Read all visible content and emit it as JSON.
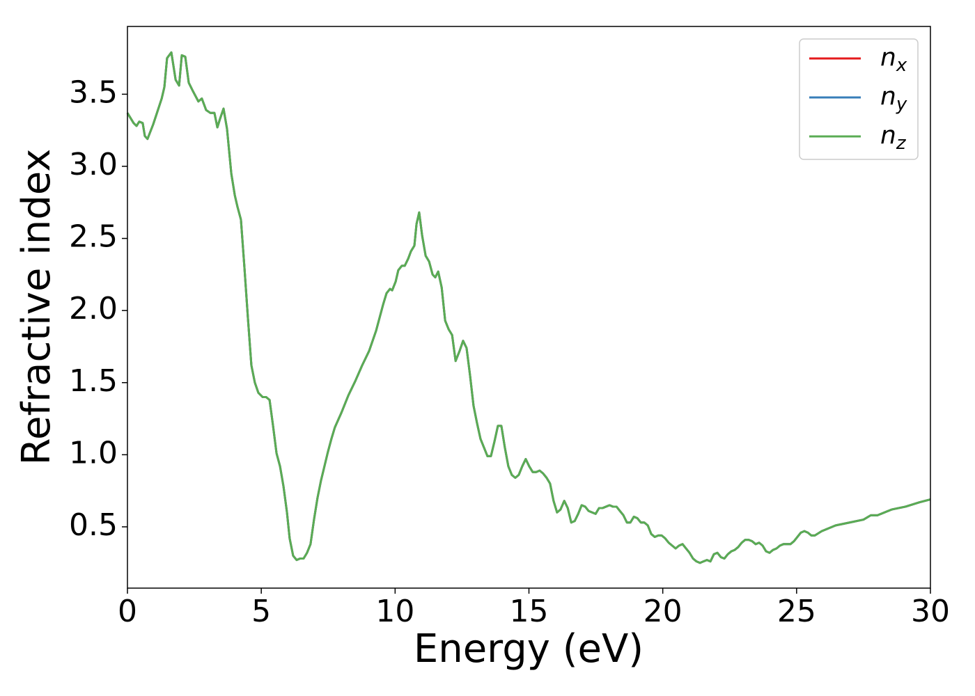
{
  "chart_data": {
    "type": "line",
    "xlabel": "Energy (eV)",
    "ylabel": "Refractive index",
    "xlim": [
      0,
      30
    ],
    "xticks": [
      0,
      5,
      10,
      15,
      20,
      25,
      30
    ],
    "ylim": [
      0.075,
      3.97
    ],
    "yticks": [
      0.5,
      {
        "value": 1,
        "label": "1.0"
      },
      1.5,
      {
        "value": 2,
        "label": "2.0"
      },
      2.5,
      {
        "value": 3,
        "label": "3.0"
      },
      3.5
    ],
    "legend": "upper right",
    "x": [
      0,
      0.23,
      0.34,
      0.44,
      0.57,
      0.65,
      0.75,
      0.96,
      1.28,
      1.38,
      1.48,
      1.64,
      1.8,
      1.93,
      2.03,
      2.16,
      2.29,
      2.45,
      2.65,
      2.78,
      2.94,
      3.1,
      3.25,
      3.36,
      3.46,
      3.59,
      3.72,
      3.88,
      4.01,
      4.11,
      4.24,
      4.37,
      4.5,
      4.63,
      4.76,
      4.89,
      5.05,
      5.18,
      5.31,
      5.44,
      5.57,
      5.7,
      5.83,
      5.96,
      6.06,
      6.19,
      6.32,
      6.45,
      6.58,
      6.71,
      6.84,
      6.97,
      7.1,
      7.23,
      7.36,
      7.49,
      7.62,
      7.75,
      7.99,
      8.25,
      8.51,
      8.77,
      9.03,
      9.29,
      9.42,
      9.55,
      9.68,
      9.81,
      9.89,
      10.02,
      10.12,
      10.25,
      10.36,
      10.49,
      10.59,
      10.72,
      10.8,
      10.9,
      11.01,
      11.14,
      11.27,
      11.4,
      11.5,
      11.61,
      11.74,
      11.87,
      12.0,
      12.13,
      12.26,
      12.41,
      12.54,
      12.67,
      12.8,
      12.93,
      13.06,
      13.19,
      13.32,
      13.45,
      13.58,
      13.71,
      13.84,
      13.97,
      14.1,
      14.23,
      14.36,
      14.49,
      14.62,
      14.75,
      14.88,
      15.01,
      15.14,
      15.27,
      15.4,
      15.53,
      15.66,
      15.79,
      15.92,
      16.05,
      16.18,
      16.32,
      16.45,
      16.58,
      16.71,
      16.84,
      16.97,
      17.1,
      17.23,
      17.36,
      17.49,
      17.62,
      17.75,
      17.88,
      18.01,
      18.14,
      18.27,
      18.4,
      18.53,
      18.66,
      18.79,
      18.92,
      19.05,
      19.18,
      19.31,
      19.44,
      19.57,
      19.7,
      19.83,
      19.96,
      20.09,
      20.22,
      20.35,
      20.48,
      20.61,
      20.74,
      20.87,
      21.0,
      21.13,
      21.26,
      21.39,
      21.52,
      21.65,
      21.78,
      21.91,
      22.04,
      22.17,
      22.3,
      22.43,
      22.56,
      22.69,
      22.82,
      22.95,
      23.08,
      23.21,
      23.34,
      23.47,
      23.6,
      23.73,
      23.86,
      23.99,
      24.12,
      24.25,
      24.38,
      24.51,
      24.64,
      24.77,
      24.9,
      25.03,
      25.16,
      25.29,
      25.42,
      25.55,
      25.68,
      25.94,
      26.2,
      26.46,
      26.98,
      27.5,
      27.77,
      28.02,
      28.55,
      29.07,
      29.59,
      30
    ],
    "series": [
      {
        "name": "nx",
        "color": "#e41a1c",
        "values": [
          3.37,
          3.3,
          3.28,
          3.31,
          3.3,
          3.21,
          3.19,
          3.29,
          3.47,
          3.55,
          3.75,
          3.79,
          3.6,
          3.56,
          3.77,
          3.76,
          3.58,
          3.52,
          3.45,
          3.47,
          3.39,
          3.37,
          3.37,
          3.27,
          3.33,
          3.4,
          3.26,
          2.95,
          2.8,
          2.72,
          2.63,
          2.3,
          1.95,
          1.62,
          1.5,
          1.43,
          1.4,
          1.4,
          1.38,
          1.2,
          1.01,
          0.92,
          0.78,
          0.6,
          0.42,
          0.3,
          0.27,
          0.28,
          0.28,
          0.32,
          0.38,
          0.55,
          0.7,
          0.82,
          0.92,
          1.02,
          1.11,
          1.19,
          1.29,
          1.41,
          1.51,
          1.62,
          1.72,
          1.86,
          1.95,
          2.04,
          2.12,
          2.15,
          2.14,
          2.2,
          2.28,
          2.31,
          2.31,
          2.36,
          2.41,
          2.45,
          2.6,
          2.68,
          2.52,
          2.38,
          2.34,
          2.25,
          2.23,
          2.27,
          2.16,
          1.93,
          1.87,
          1.83,
          1.65,
          1.72,
          1.79,
          1.74,
          1.55,
          1.34,
          1.22,
          1.11,
          1.05,
          0.99,
          0.99,
          1.09,
          1.2,
          1.2,
          1.05,
          0.92,
          0.86,
          0.84,
          0.86,
          0.92,
          0.97,
          0.92,
          0.88,
          0.88,
          0.89,
          0.87,
          0.84,
          0.8,
          0.68,
          0.6,
          0.62,
          0.68,
          0.63,
          0.53,
          0.54,
          0.59,
          0.65,
          0.64,
          0.61,
          0.6,
          0.59,
          0.63,
          0.63,
          0.64,
          0.65,
          0.64,
          0.64,
          0.61,
          0.58,
          0.53,
          0.53,
          0.57,
          0.56,
          0.53,
          0.53,
          0.51,
          0.45,
          0.43,
          0.44,
          0.44,
          0.42,
          0.39,
          0.37,
          0.35,
          0.37,
          0.38,
          0.35,
          0.32,
          0.28,
          0.26,
          0.25,
          0.26,
          0.27,
          0.26,
          0.31,
          0.32,
          0.29,
          0.28,
          0.31,
          0.33,
          0.34,
          0.36,
          0.39,
          0.41,
          0.41,
          0.4,
          0.38,
          0.39,
          0.37,
          0.33,
          0.32,
          0.34,
          0.35,
          0.37,
          0.38,
          0.38,
          0.38,
          0.4,
          0.43,
          0.46,
          0.47,
          0.46,
          0.44,
          0.44,
          0.47,
          0.49,
          0.51,
          0.53,
          0.55,
          0.58,
          0.58,
          0.62,
          0.64,
          0.67,
          0.69
        ]
      },
      {
        "name": "ny",
        "color": "#377eb8",
        "values": [
          3.37,
          3.3,
          3.28,
          3.31,
          3.3,
          3.21,
          3.19,
          3.29,
          3.47,
          3.55,
          3.75,
          3.79,
          3.6,
          3.56,
          3.77,
          3.76,
          3.58,
          3.52,
          3.45,
          3.47,
          3.39,
          3.37,
          3.37,
          3.27,
          3.33,
          3.4,
          3.26,
          2.95,
          2.8,
          2.72,
          2.63,
          2.3,
          1.95,
          1.62,
          1.5,
          1.43,
          1.4,
          1.4,
          1.38,
          1.2,
          1.01,
          0.92,
          0.78,
          0.6,
          0.42,
          0.3,
          0.27,
          0.28,
          0.28,
          0.32,
          0.38,
          0.55,
          0.7,
          0.82,
          0.92,
          1.02,
          1.11,
          1.19,
          1.29,
          1.41,
          1.51,
          1.62,
          1.72,
          1.86,
          1.95,
          2.04,
          2.12,
          2.15,
          2.14,
          2.2,
          2.28,
          2.31,
          2.31,
          2.36,
          2.41,
          2.45,
          2.6,
          2.68,
          2.52,
          2.38,
          2.34,
          2.25,
          2.23,
          2.27,
          2.16,
          1.93,
          1.87,
          1.83,
          1.65,
          1.72,
          1.79,
          1.74,
          1.55,
          1.34,
          1.22,
          1.11,
          1.05,
          0.99,
          0.99,
          1.09,
          1.2,
          1.2,
          1.05,
          0.92,
          0.86,
          0.84,
          0.86,
          0.92,
          0.97,
          0.92,
          0.88,
          0.88,
          0.89,
          0.87,
          0.84,
          0.8,
          0.68,
          0.6,
          0.62,
          0.68,
          0.63,
          0.53,
          0.54,
          0.59,
          0.65,
          0.64,
          0.61,
          0.6,
          0.59,
          0.63,
          0.63,
          0.64,
          0.65,
          0.64,
          0.64,
          0.61,
          0.58,
          0.53,
          0.53,
          0.57,
          0.56,
          0.53,
          0.53,
          0.51,
          0.45,
          0.43,
          0.44,
          0.44,
          0.42,
          0.39,
          0.37,
          0.35,
          0.37,
          0.38,
          0.35,
          0.32,
          0.28,
          0.26,
          0.25,
          0.26,
          0.27,
          0.26,
          0.31,
          0.32,
          0.29,
          0.28,
          0.31,
          0.33,
          0.34,
          0.36,
          0.39,
          0.41,
          0.41,
          0.4,
          0.38,
          0.39,
          0.37,
          0.33,
          0.32,
          0.34,
          0.35,
          0.37,
          0.38,
          0.38,
          0.38,
          0.4,
          0.43,
          0.46,
          0.47,
          0.46,
          0.44,
          0.44,
          0.47,
          0.49,
          0.51,
          0.53,
          0.55,
          0.58,
          0.58,
          0.62,
          0.64,
          0.67,
          0.69
        ]
      },
      {
        "name": "nz",
        "color": "#5aac54",
        "values": [
          3.37,
          3.3,
          3.28,
          3.31,
          3.3,
          3.21,
          3.19,
          3.29,
          3.47,
          3.55,
          3.75,
          3.79,
          3.6,
          3.56,
          3.77,
          3.76,
          3.58,
          3.52,
          3.45,
          3.47,
          3.39,
          3.37,
          3.37,
          3.27,
          3.33,
          3.4,
          3.26,
          2.95,
          2.8,
          2.72,
          2.63,
          2.3,
          1.95,
          1.62,
          1.5,
          1.43,
          1.4,
          1.4,
          1.38,
          1.2,
          1.01,
          0.92,
          0.78,
          0.6,
          0.42,
          0.3,
          0.27,
          0.28,
          0.28,
          0.32,
          0.38,
          0.55,
          0.7,
          0.82,
          0.92,
          1.02,
          1.11,
          1.19,
          1.29,
          1.41,
          1.51,
          1.62,
          1.72,
          1.86,
          1.95,
          2.04,
          2.12,
          2.15,
          2.14,
          2.2,
          2.28,
          2.31,
          2.31,
          2.36,
          2.41,
          2.45,
          2.6,
          2.68,
          2.52,
          2.38,
          2.34,
          2.25,
          2.23,
          2.27,
          2.16,
          1.93,
          1.87,
          1.83,
          1.65,
          1.72,
          1.79,
          1.74,
          1.55,
          1.34,
          1.22,
          1.11,
          1.05,
          0.99,
          0.99,
          1.09,
          1.2,
          1.2,
          1.05,
          0.92,
          0.86,
          0.84,
          0.86,
          0.92,
          0.97,
          0.92,
          0.88,
          0.88,
          0.89,
          0.87,
          0.84,
          0.8,
          0.68,
          0.6,
          0.62,
          0.68,
          0.63,
          0.53,
          0.54,
          0.59,
          0.65,
          0.64,
          0.61,
          0.6,
          0.59,
          0.63,
          0.63,
          0.64,
          0.65,
          0.64,
          0.64,
          0.61,
          0.58,
          0.53,
          0.53,
          0.57,
          0.56,
          0.53,
          0.53,
          0.51,
          0.45,
          0.43,
          0.44,
          0.44,
          0.42,
          0.39,
          0.37,
          0.35,
          0.37,
          0.38,
          0.35,
          0.32,
          0.28,
          0.26,
          0.25,
          0.26,
          0.27,
          0.26,
          0.31,
          0.32,
          0.29,
          0.28,
          0.31,
          0.33,
          0.34,
          0.36,
          0.39,
          0.41,
          0.41,
          0.4,
          0.38,
          0.39,
          0.37,
          0.33,
          0.32,
          0.34,
          0.35,
          0.37,
          0.38,
          0.38,
          0.38,
          0.4,
          0.43,
          0.46,
          0.47,
          0.46,
          0.44,
          0.44,
          0.47,
          0.49,
          0.51,
          0.53,
          0.55,
          0.58,
          0.58,
          0.62,
          0.64,
          0.67,
          0.69
        ]
      }
    ]
  }
}
